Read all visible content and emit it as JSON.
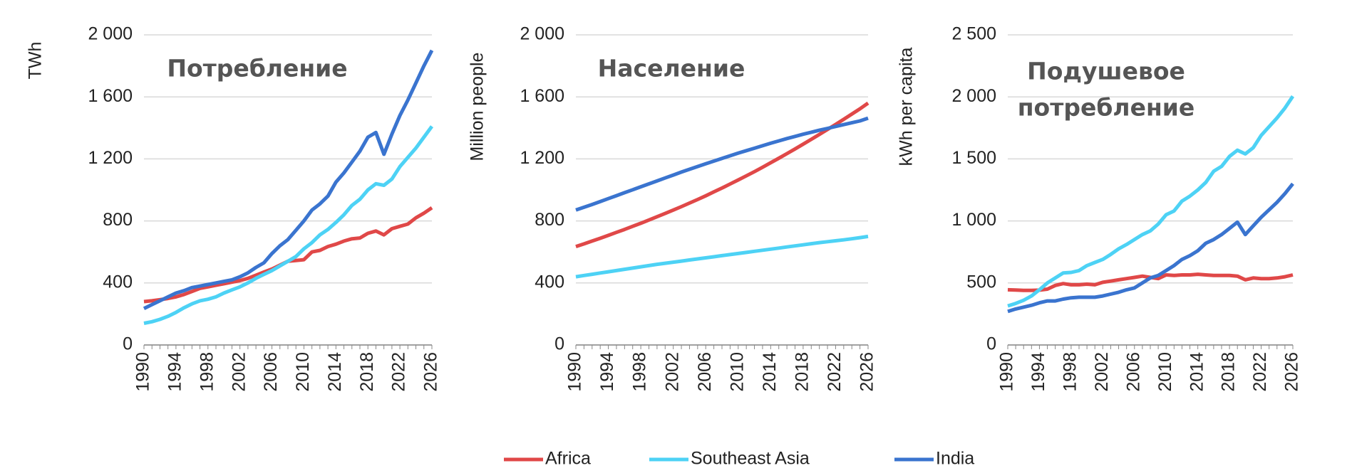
{
  "chart_data": [
    {
      "type": "line",
      "title": [
        "Потребление"
      ],
      "y_label": "TWh",
      "x": [
        1990,
        1991,
        1992,
        1993,
        1994,
        1995,
        1996,
        1997,
        1998,
        1999,
        2000,
        2001,
        2002,
        2003,
        2004,
        2005,
        2006,
        2007,
        2008,
        2009,
        2010,
        2011,
        2012,
        2013,
        2014,
        2015,
        2016,
        2017,
        2018,
        2019,
        2020,
        2021,
        2022,
        2023,
        2024,
        2025,
        2026
      ],
      "xlim": [
        1990,
        2026
      ],
      "xticks": [
        1990,
        1994,
        1998,
        2002,
        2006,
        2010,
        2014,
        2018,
        2022,
        2026
      ],
      "ylim": [
        0,
        2000
      ],
      "yticks": [
        0,
        400,
        800,
        {
          "value": 1200,
          "label": "1 200"
        },
        {
          "value": 1600,
          "label": "1 600"
        },
        {
          "value": 2000,
          "label": "2 000"
        }
      ],
      "grid": true,
      "series": [
        {
          "name": "Africa",
          "color": "#e04848",
          "values": [
            280,
            285,
            292,
            300,
            310,
            325,
            345,
            365,
            375,
            385,
            395,
            405,
            415,
            430,
            450,
            470,
            490,
            515,
            540,
            545,
            550,
            600,
            610,
            635,
            650,
            670,
            685,
            690,
            720,
            735,
            710,
            750,
            765,
            780,
            820,
            850,
            885
          ]
        },
        {
          "name": "Southeast Asia",
          "color": "#4dd2f5",
          "values": [
            140,
            150,
            165,
            185,
            210,
            240,
            265,
            285,
            295,
            310,
            335,
            355,
            375,
            400,
            430,
            455,
            480,
            510,
            540,
            570,
            620,
            660,
            710,
            745,
            790,
            840,
            900,
            940,
            1000,
            1040,
            1030,
            1070,
            1150,
            1210,
            1270,
            1340,
            1410
          ]
        },
        {
          "name": "India",
          "color": "#3a74cf",
          "values": [
            235,
            260,
            285,
            310,
            335,
            350,
            370,
            380,
            390,
            400,
            410,
            420,
            440,
            465,
            500,
            530,
            590,
            640,
            680,
            740,
            800,
            870,
            910,
            960,
            1050,
            1110,
            1180,
            1250,
            1340,
            1370,
            1230,
            1360,
            1480,
            1580,
            1690,
            1800,
            1900
          ]
        }
      ]
    },
    {
      "type": "line",
      "title": [
        "Население"
      ],
      "y_label": "Million people",
      "x": [
        1990,
        1991,
        1992,
        1993,
        1994,
        1995,
        1996,
        1997,
        1998,
        1999,
        2000,
        2001,
        2002,
        2003,
        2004,
        2005,
        2006,
        2007,
        2008,
        2009,
        2010,
        2011,
        2012,
        2013,
        2014,
        2015,
        2016,
        2017,
        2018,
        2019,
        2020,
        2021,
        2022,
        2023,
        2024,
        2025,
        2026
      ],
      "xlim": [
        1990,
        2026
      ],
      "xticks": [
        1990,
        1994,
        1998,
        2002,
        2006,
        2010,
        2014,
        2018,
        2022,
        2026
      ],
      "ylim": [
        0,
        2000
      ],
      "yticks": [
        0,
        400,
        800,
        {
          "value": 1200,
          "label": "1 200"
        },
        {
          "value": 1600,
          "label": "1 600"
        },
        {
          "value": 2000,
          "label": "2 000"
        }
      ],
      "grid": true,
      "series": [
        {
          "name": "Africa",
          "color": "#e04848",
          "values": [
            635,
            652,
            670,
            688,
            707,
            726,
            745,
            765,
            785,
            806,
            827,
            848,
            870,
            892,
            915,
            938,
            962,
            987,
            1012,
            1038,
            1064,
            1091,
            1118,
            1146,
            1175,
            1204,
            1234,
            1264,
            1295,
            1326,
            1358,
            1390,
            1422,
            1455,
            1489,
            1523,
            1560
          ]
        },
        {
          "name": "Southeast Asia",
          "color": "#4dd2f5",
          "values": [
            440,
            448,
            456,
            464,
            472,
            480,
            488,
            496,
            504,
            512,
            520,
            527,
            534,
            541,
            548,
            555,
            562,
            569,
            576,
            583,
            590,
            597,
            604,
            611,
            618,
            625,
            632,
            639,
            646,
            653,
            660,
            666,
            672,
            678,
            685,
            692,
            700
          ]
        },
        {
          "name": "India",
          "color": "#3a74cf",
          "values": [
            870,
            888,
            906,
            925,
            944,
            963,
            982,
            1001,
            1020,
            1039,
            1058,
            1077,
            1096,
            1115,
            1133,
            1151,
            1169,
            1186,
            1203,
            1220,
            1237,
            1253,
            1269,
            1285,
            1301,
            1316,
            1331,
            1345,
            1359,
            1372,
            1385,
            1397,
            1409,
            1421,
            1433,
            1445,
            1463
          ]
        }
      ]
    },
    {
      "type": "line",
      "title": [
        "Подушевое",
        "потребление"
      ],
      "y_label": "kWh per capita",
      "x": [
        1990,
        1991,
        1992,
        1993,
        1994,
        1995,
        1996,
        1997,
        1998,
        1999,
        2000,
        2001,
        2002,
        2003,
        2004,
        2005,
        2006,
        2007,
        2008,
        2009,
        2010,
        2011,
        2012,
        2013,
        2014,
        2015,
        2016,
        2017,
        2018,
        2019,
        2020,
        2021,
        2022,
        2023,
        2024,
        2025,
        2026
      ],
      "xlim": [
        1990,
        2026
      ],
      "xticks": [
        1990,
        1994,
        1998,
        2002,
        2006,
        2010,
        2014,
        2018,
        2022,
        2026
      ],
      "ylim": [
        0,
        2500
      ],
      "yticks": [
        0,
        500,
        {
          "value": 1000,
          "label": "1 000"
        },
        {
          "value": 1500,
          "label": "1 500"
        },
        {
          "value": 2000,
          "label": "2 000"
        },
        {
          "value": 2500,
          "label": "2 500"
        }
      ],
      "grid": true,
      "series": [
        {
          "name": "Africa",
          "color": "#e04848",
          "values": [
            445,
            443,
            440,
            440,
            442,
            450,
            480,
            495,
            485,
            485,
            490,
            485,
            505,
            515,
            525,
            535,
            545,
            555,
            545,
            535,
            565,
            560,
            565,
            565,
            570,
            565,
            560,
            560,
            560,
            555,
            525,
            540,
            535,
            535,
            540,
            550,
            565
          ]
        },
        {
          "name": "Southeast Asia",
          "color": "#4dd2f5",
          "values": [
            315,
            335,
            360,
            395,
            445,
            500,
            540,
            580,
            585,
            600,
            640,
            665,
            690,
            730,
            775,
            810,
            850,
            890,
            920,
            975,
            1050,
            1080,
            1160,
            1200,
            1250,
            1310,
            1400,
            1440,
            1520,
            1570,
            1540,
            1590,
            1690,
            1760,
            1830,
            1910,
            2005
          ]
        },
        {
          "name": "India",
          "color": "#3a74cf",
          "values": [
            270,
            290,
            305,
            320,
            340,
            355,
            355,
            370,
            380,
            385,
            385,
            385,
            395,
            410,
            425,
            445,
            460,
            500,
            540,
            560,
            600,
            640,
            690,
            720,
            760,
            820,
            850,
            890,
            940,
            990,
            890,
            960,
            1030,
            1090,
            1150,
            1220,
            1300
          ]
        }
      ]
    }
  ]
}
